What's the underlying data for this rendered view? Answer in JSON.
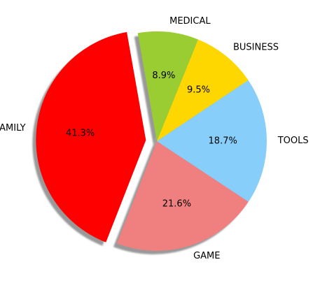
{
  "chart_data": {
    "type": "pie",
    "title": "",
    "slices": [
      {
        "label": "FAMILY",
        "value": 41.3,
        "pct_label": "41.3%",
        "color": "#ff0000",
        "explode": true
      },
      {
        "label": "GAME",
        "value": 21.6,
        "pct_label": "21.6%",
        "color": "#f08080",
        "explode": false
      },
      {
        "label": "TOOLS",
        "value": 18.7,
        "pct_label": "18.7%",
        "color": "#87cefa",
        "explode": false
      },
      {
        "label": "BUSINESS",
        "value": 9.5,
        "pct_label": "9.5%",
        "color": "#ffd700",
        "explode": false
      },
      {
        "label": "MEDICAL",
        "value": 8.9,
        "pct_label": "8.9%",
        "color": "#9acd32",
        "explode": false
      }
    ],
    "shadow": true,
    "legend": "none"
  }
}
